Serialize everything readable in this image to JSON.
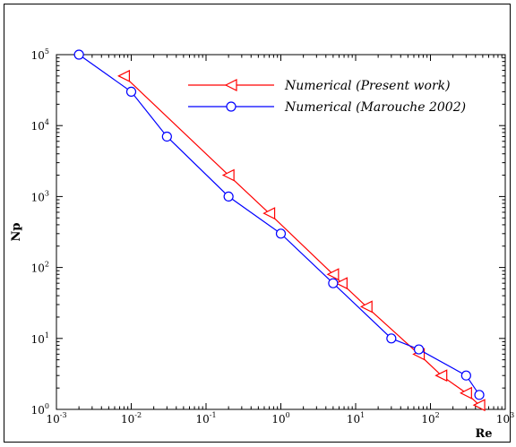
{
  "chart_data": {
    "type": "line",
    "xscale": "log",
    "yscale": "log",
    "xlim": [
      0.001,
      1000
    ],
    "ylim": [
      1,
      100000
    ],
    "xlabel": "Re",
    "ylabel": "Np",
    "x_ticks": [
      {
        "base": "10",
        "exp": "-3"
      },
      {
        "base": "10",
        "exp": "-2"
      },
      {
        "base": "10",
        "exp": "-1"
      },
      {
        "base": "10",
        "exp": "0"
      },
      {
        "base": "10",
        "exp": "1"
      },
      {
        "base": "10",
        "exp": "2"
      },
      {
        "base": "10",
        "exp": "3"
      }
    ],
    "y_ticks": [
      {
        "base": "10",
        "exp": "0"
      },
      {
        "base": "10",
        "exp": "1"
      },
      {
        "base": "10",
        "exp": "2"
      },
      {
        "base": "10",
        "exp": "3"
      },
      {
        "base": "10",
        "exp": "4"
      },
      {
        "base": "10",
        "exp": "5"
      }
    ],
    "legend_position": "top-right",
    "grid": false,
    "series": [
      {
        "name": "Numerical (Present work)",
        "color": "#ff0000",
        "marker": "triangle-left",
        "x": [
          0.008,
          0.2,
          0.7,
          5,
          6.5,
          14,
          70,
          140,
          300,
          450
        ],
        "y": [
          50000,
          2000,
          580,
          80,
          60,
          28,
          6,
          3,
          1.7,
          1.15
        ]
      },
      {
        "name": "Numerical (Marouche 2002)",
        "color": "#0000ff",
        "marker": "circle",
        "x": [
          0.002,
          0.01,
          0.03,
          0.2,
          1,
          5,
          30,
          70,
          300,
          450
        ],
        "y": [
          100000,
          30000,
          7000,
          1000,
          300,
          60,
          10,
          7,
          3,
          1.6
        ]
      }
    ]
  }
}
